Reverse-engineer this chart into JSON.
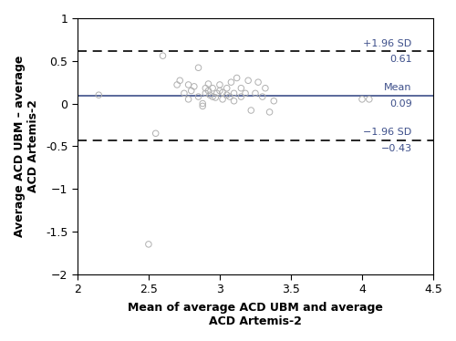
{
  "scatter_x": [
    2.15,
    2.5,
    2.55,
    2.6,
    2.7,
    2.72,
    2.75,
    2.78,
    2.78,
    2.8,
    2.82,
    2.85,
    2.85,
    2.88,
    2.88,
    2.9,
    2.9,
    2.92,
    2.92,
    2.93,
    2.95,
    2.95,
    2.97,
    2.98,
    3.0,
    3.0,
    3.02,
    3.02,
    3.05,
    3.05,
    3.07,
    3.08,
    3.1,
    3.1,
    3.12,
    3.15,
    3.15,
    3.18,
    3.2,
    3.22,
    3.25,
    3.27,
    3.3,
    3.32,
    3.35,
    3.38,
    4.0,
    4.05
  ],
  "scatter_y": [
    0.1,
    -1.65,
    -0.35,
    0.56,
    0.22,
    0.27,
    0.12,
    0.05,
    0.22,
    0.15,
    0.2,
    0.42,
    0.08,
    0.0,
    -0.03,
    0.18,
    0.12,
    0.23,
    0.15,
    0.1,
    0.08,
    0.18,
    0.07,
    0.12,
    0.22,
    0.15,
    0.13,
    0.05,
    0.18,
    0.1,
    0.08,
    0.25,
    0.12,
    0.03,
    0.3,
    0.18,
    0.08,
    0.12,
    0.27,
    -0.08,
    0.12,
    0.25,
    0.08,
    0.18,
    -0.1,
    0.03,
    0.05,
    0.05
  ],
  "mean_line": 0.09,
  "upper_limit": 0.61,
  "lower_limit": -0.43,
  "xlim": [
    2.0,
    4.5
  ],
  "ylim": [
    -2.0,
    1.0
  ],
  "xticks": [
    2.0,
    2.5,
    3.0,
    3.5,
    4.0,
    4.5
  ],
  "yticks": [
    -2.0,
    -1.5,
    -1.0,
    -0.5,
    0.0,
    0.5,
    1.0
  ],
  "xlabel": "Mean of average ACD UBM and average\nACD Artemis-2",
  "ylabel": "Average ACD UBM – average\nACD Artemis-2",
  "line_color": "#3d4f8a",
  "scatter_edge_color": "#b0b0b0",
  "annotation_color": "#3d4f8a",
  "upper_label1": "+1.96 SD",
  "upper_label2": "0.61",
  "mean_label1": "Mean",
  "mean_label2": "0.09",
  "lower_label1": "−1.96 SD",
  "lower_label2": "−0.43"
}
